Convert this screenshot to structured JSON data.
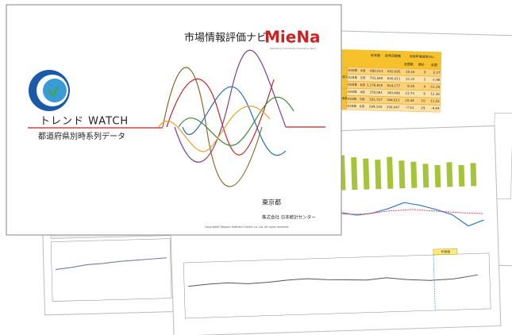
{
  "cover": {
    "brand": "市場情報評価ナビ",
    "logo": "MieNa",
    "tagline": "Marketing Information Evaluation Navi",
    "title": "トレンド WATCH",
    "subtitle": "都道府県別時系列データ",
    "region": "東京都",
    "company": "株式会社 日本統計センター",
    "copyright": "Copyright(C)Nippon Statistics Center co.,Ltd. All rights reserved."
  },
  "table_page": {
    "header": [
      "前年数",
      "前年同期数",
      "対前年増減率(%)"
    ],
    "subheader": [
      "全国数",
      "順位",
      "全国"
    ],
    "groups": [
      "1世帯当たり収入額(勤労世帯)(円)",
      "1世帯当たり消費支出額(全世帯)(円)"
    ],
    "rows": [
      [
        "H28年",
        "4月",
        "680,213",
        "602,605",
        "10.16",
        "8",
        "2.27"
      ],
      [
        "H28年",
        "5月",
        "701,645",
        "600,011",
        "12.22",
        "2",
        "-2.98"
      ],
      [
        "H28年",
        "6月",
        "1,176,815",
        "924,177",
        "8.26",
        "4",
        "-11.29"
      ],
      [
        "H28年",
        "4月",
        "378,061",
        "340,408",
        "23.73",
        "9",
        "12.36"
      ],
      [
        "H28年",
        "5月",
        "331,727",
        "344,611",
        "20.44",
        "10",
        "11.53"
      ],
      [
        "H28年",
        "6月",
        "294,116",
        "330,047",
        "-7.51",
        "29",
        "-4.44"
      ]
    ]
  },
  "chart_page": {
    "badge": "予測値"
  }
}
